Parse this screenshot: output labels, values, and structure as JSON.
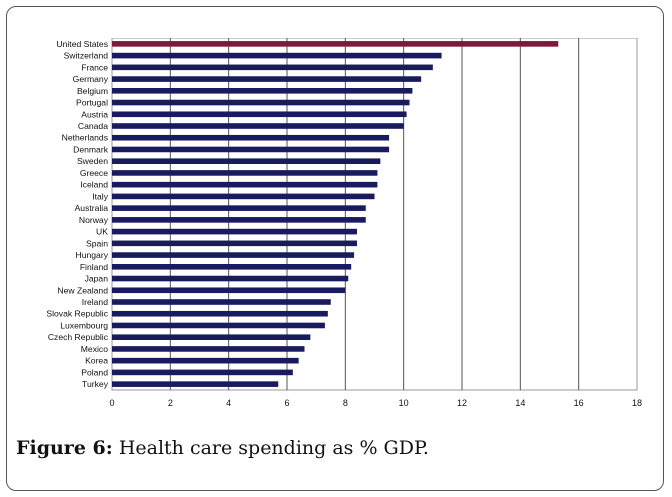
{
  "caption": {
    "label": "Figure 6:",
    "text": "Health care spending as % GDP."
  },
  "colors": {
    "bar": "#1a1a5e",
    "highlight": "#7a1b3c",
    "grid": "#555555",
    "text": "#111111"
  },
  "chart_data": {
    "type": "bar",
    "orientation": "horizontal",
    "title": "",
    "xlabel": "",
    "ylabel": "",
    "xlim": [
      0,
      18
    ],
    "xticks": [
      0,
      2,
      4,
      6,
      8,
      10,
      12,
      14,
      16,
      18
    ],
    "grid": true,
    "categories": [
      "United States",
      "Switzerland",
      "France",
      "Germany",
      "Belgium",
      "Portugal",
      "Austria",
      "Canada",
      "Netherlands",
      "Denmark",
      "Sweden",
      "Greece",
      "Iceland",
      "Italy",
      "Australia",
      "Norway",
      "UK",
      "Spain",
      "Hungary",
      "Finland",
      "Japan",
      "New Zealand",
      "Ireland",
      "Slovak Republic",
      "Luxembourg",
      "Czech Republic",
      "Mexico",
      "Korea",
      "Poland",
      "Turkey"
    ],
    "values": [
      15.3,
      11.3,
      11.0,
      10.6,
      10.3,
      10.2,
      10.1,
      10.0,
      9.5,
      9.5,
      9.2,
      9.1,
      9.1,
      9.0,
      8.7,
      8.7,
      8.4,
      8.4,
      8.3,
      8.2,
      8.1,
      8.0,
      7.5,
      7.4,
      7.3,
      6.8,
      6.6,
      6.4,
      6.2,
      5.7
    ],
    "highlight_index": 0
  }
}
